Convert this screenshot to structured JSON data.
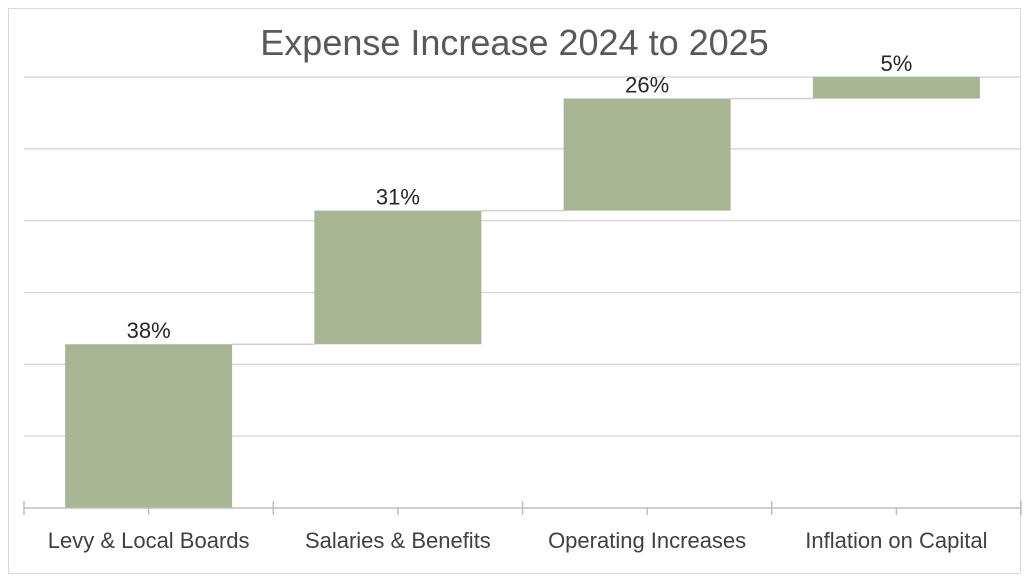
{
  "chart_data": {
    "type": "waterfall",
    "title": "Expense Increase 2024 to 2025",
    "categories": [
      "Levy & Local Boards",
      "Salaries & Benefits",
      "Operating Increases",
      "Inflation on Capital"
    ],
    "values": [
      38,
      31,
      26,
      5
    ],
    "data_labels": [
      "38%",
      "31%",
      "26%",
      "5%"
    ],
    "ylim": [
      0,
      100
    ],
    "grid": true,
    "legend": "none",
    "colors": {
      "bar": "#a6b592",
      "grid": "#d9d9d9",
      "axis": "#bfbfbf",
      "connector": "#d0d0d0"
    }
  }
}
